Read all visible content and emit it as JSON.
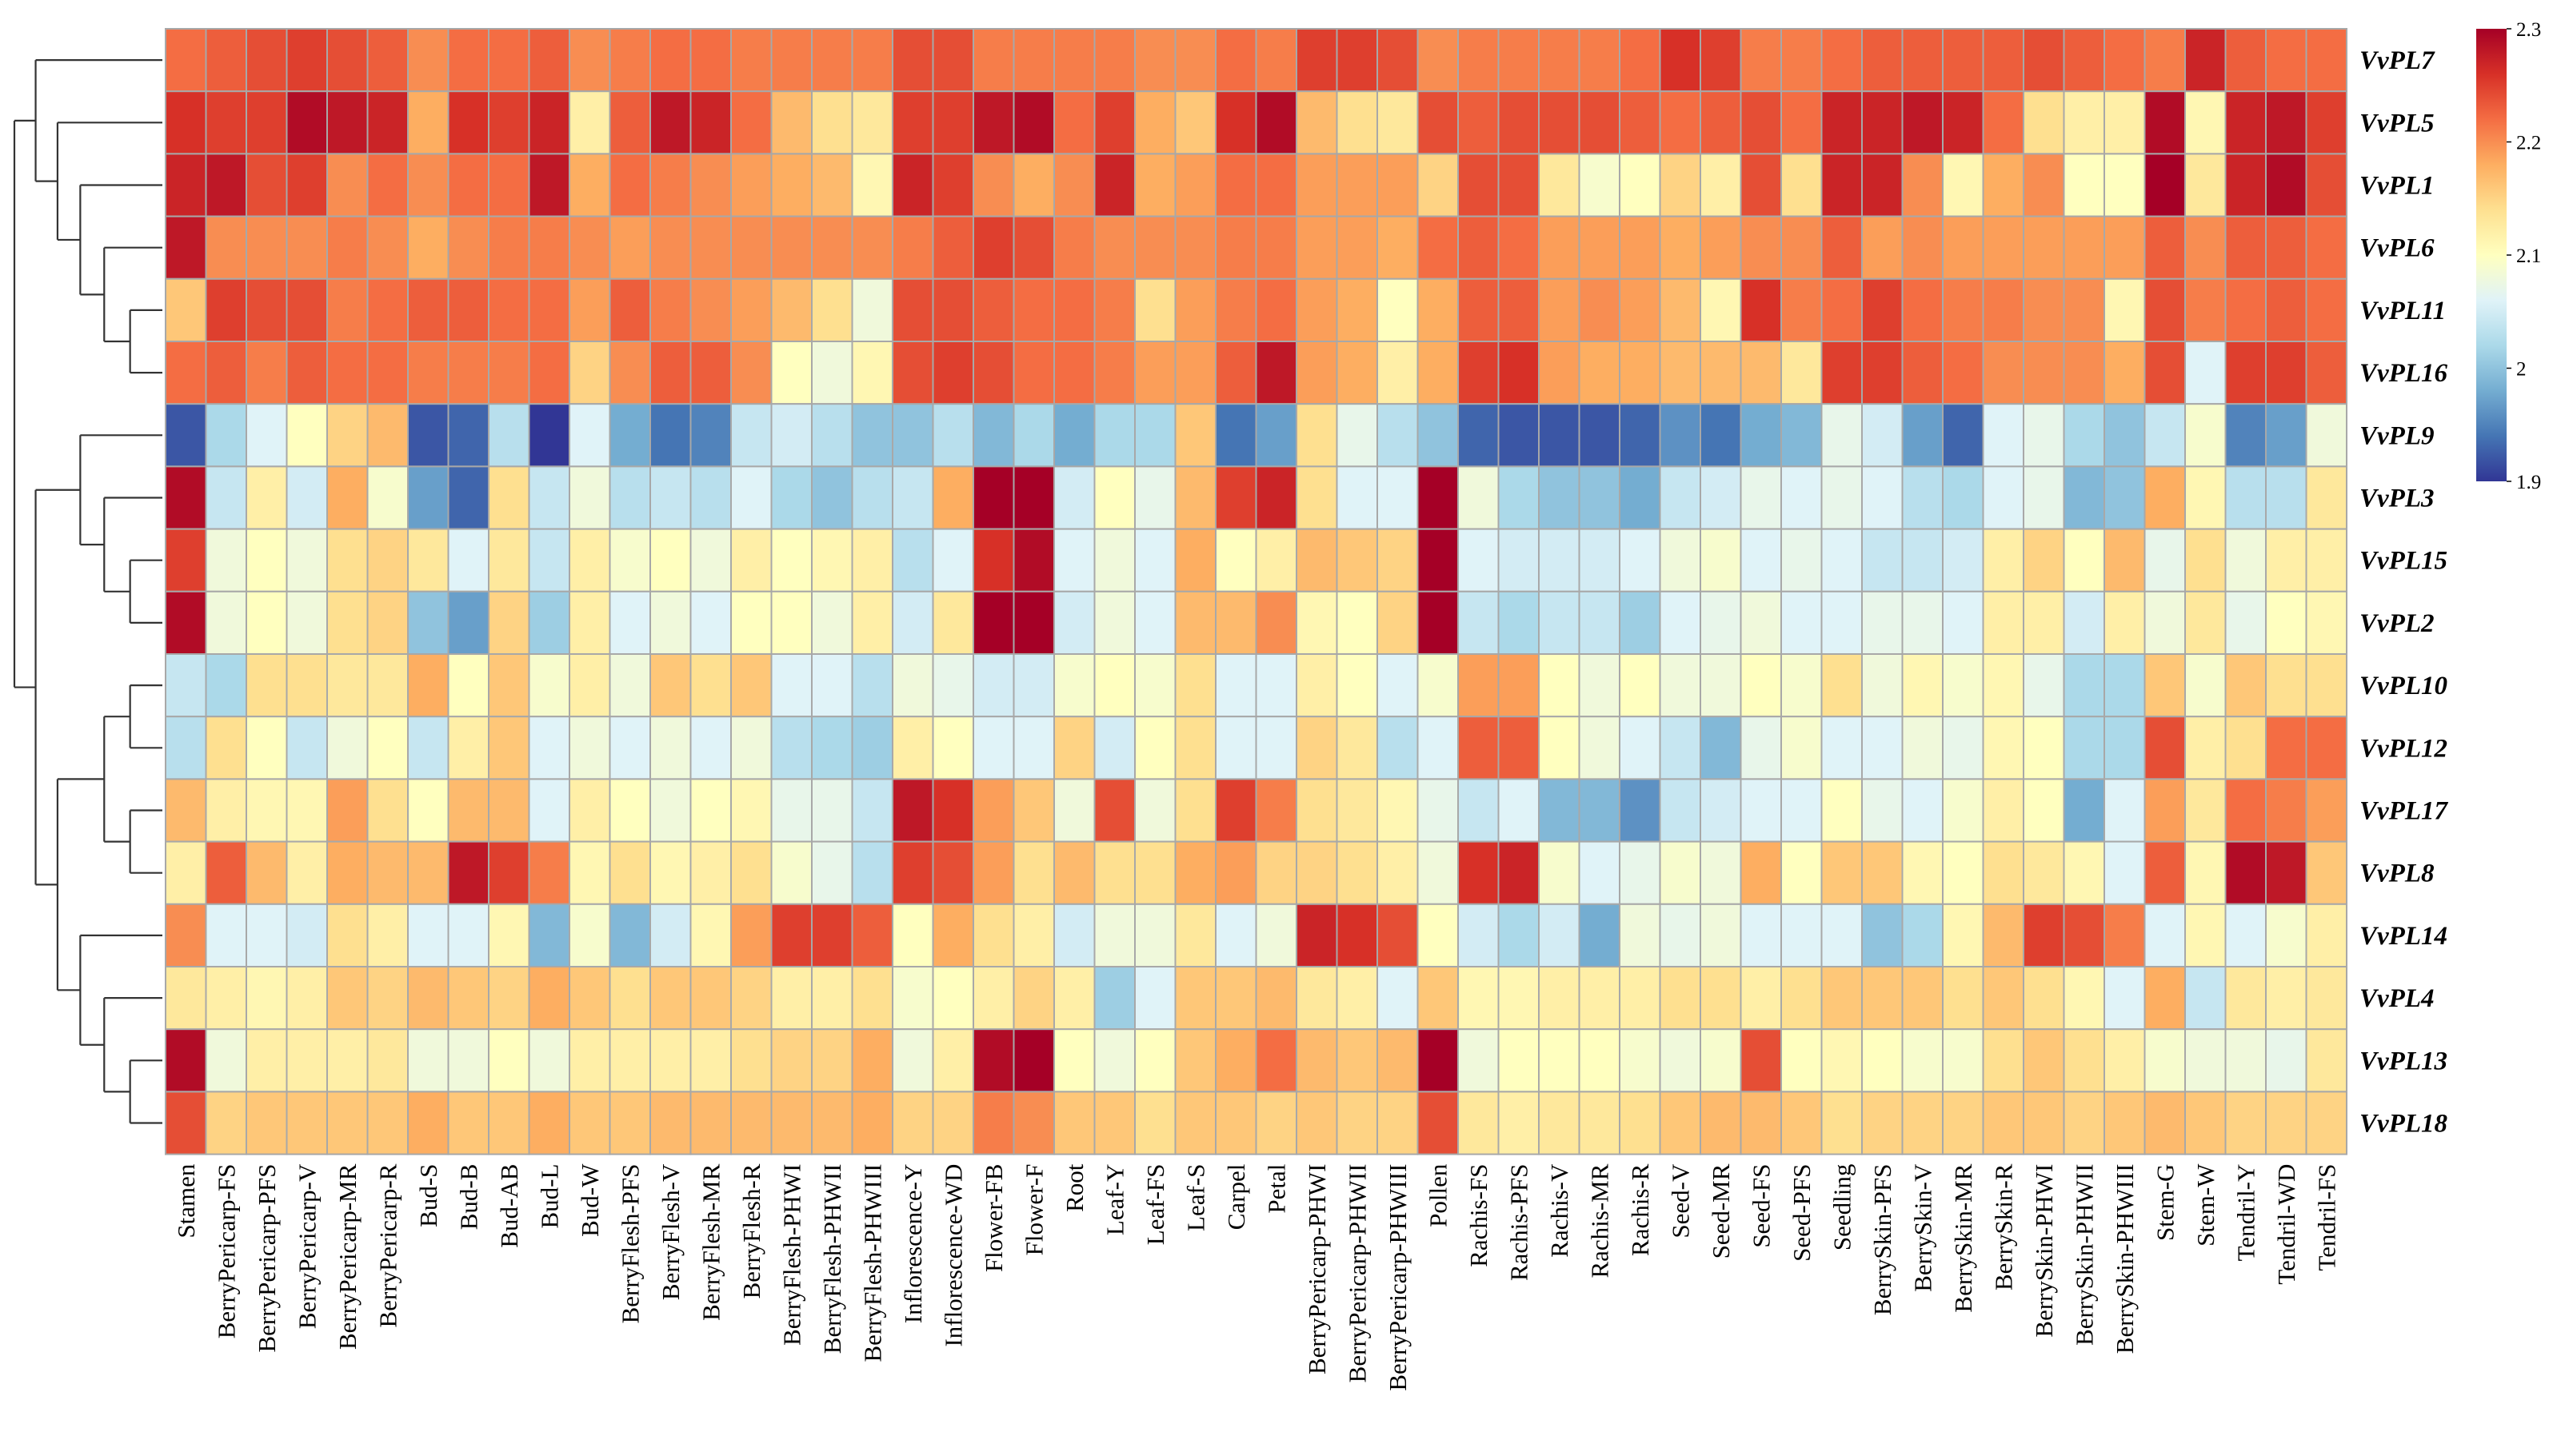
{
  "chart_data": {
    "type": "heatmap",
    "rows": [
      "VvPL7",
      "VvPL5",
      "VvPL1",
      "VvPL6",
      "VvPL11",
      "VvPL16",
      "VvPL9",
      "VvPL3",
      "VvPL15",
      "VvPL2",
      "VvPL10",
      "VvPL12",
      "VvPL17",
      "VvPL8",
      "VvPL14",
      "VvPL4",
      "VvPL13",
      "VvPL18"
    ],
    "columns": [
      "Stamen",
      "BerryPericarp-FS",
      "BerryPericarp-PFS",
      "BerryPericarp-V",
      "BerryPericarp-MR",
      "BerryPericarp-R",
      "Bud-S",
      "Bud-B",
      "Bud-AB",
      "Bud-L",
      "Bud-W",
      "BerryFlesh-PFS",
      "BerryFlesh-V",
      "BerryFlesh-MR",
      "BerryFlesh-R",
      "BerryFlesh-PHWI",
      "BerryFlesh-PHWII",
      "BerryFlesh-PHWIII",
      "Inflorescence-Y",
      "Inflorescence-WD",
      "Flower-FB",
      "Flower-F",
      "Root",
      "Leaf-Y",
      "Leaf-FS",
      "Leaf-S",
      "Carpel",
      "Petal",
      "BerryPericarp-PHWI",
      "BerryPericarp-PHWII",
      "BerryPericarp-PHWIII",
      "Pollen",
      "Rachis-FS",
      "Rachis-PFS",
      "Rachis-V",
      "Rachis-MR",
      "Rachis-R",
      "Seed-V",
      "Seed-MR",
      "Seed-FS",
      "Seed-PFS",
      "Seedling",
      "BerrySkin-PFS",
      "BerrySkin-V",
      "BerrySkin-MR",
      "BerrySkin-R",
      "BerrySkin-PHWI",
      "BerrySkin-PHWII",
      "BerrySkin-PHWIII",
      "Stem-G",
      "Stem-W",
      "Tendril-Y",
      "Tendril-WD",
      "Tendril-FS"
    ],
    "values": [
      [
        2.22,
        2.23,
        2.24,
        2.25,
        2.24,
        2.23,
        2.2,
        2.22,
        2.22,
        2.23,
        2.2,
        2.21,
        2.22,
        2.22,
        2.21,
        2.21,
        2.21,
        2.21,
        2.24,
        2.24,
        2.21,
        2.21,
        2.21,
        2.21,
        2.2,
        2.2,
        2.22,
        2.21,
        2.25,
        2.25,
        2.24,
        2.2,
        2.21,
        2.21,
        2.21,
        2.21,
        2.22,
        2.26,
        2.25,
        2.21,
        2.21,
        2.22,
        2.23,
        2.23,
        2.23,
        2.23,
        2.24,
        2.23,
        2.22,
        2.21,
        2.27,
        2.23,
        2.22,
        2.22
      ],
      [
        2.26,
        2.25,
        2.25,
        2.29,
        2.28,
        2.27,
        2.18,
        2.26,
        2.25,
        2.27,
        2.12,
        2.23,
        2.28,
        2.27,
        2.22,
        2.17,
        2.14,
        2.13,
        2.25,
        2.25,
        2.28,
        2.29,
        2.22,
        2.25,
        2.18,
        2.16,
        2.26,
        2.29,
        2.17,
        2.14,
        2.13,
        2.24,
        2.23,
        2.24,
        2.24,
        2.24,
        2.23,
        2.22,
        2.23,
        2.24,
        2.22,
        2.27,
        2.27,
        2.28,
        2.27,
        2.22,
        2.14,
        2.12,
        2.12,
        2.29,
        2.11,
        2.27,
        2.28,
        2.25
      ],
      [
        2.27,
        2.28,
        2.24,
        2.25,
        2.2,
        2.22,
        2.2,
        2.22,
        2.22,
        2.28,
        2.18,
        2.22,
        2.21,
        2.2,
        2.19,
        2.18,
        2.17,
        2.11,
        2.27,
        2.25,
        2.2,
        2.18,
        2.2,
        2.27,
        2.18,
        2.19,
        2.22,
        2.22,
        2.19,
        2.19,
        2.19,
        2.15,
        2.24,
        2.24,
        2.13,
        2.09,
        2.1,
        2.15,
        2.12,
        2.24,
        2.14,
        2.27,
        2.27,
        2.2,
        2.11,
        2.18,
        2.2,
        2.1,
        2.1,
        2.3,
        2.13,
        2.27,
        2.29,
        2.24
      ],
      [
        2.28,
        2.2,
        2.2,
        2.2,
        2.21,
        2.2,
        2.18,
        2.2,
        2.21,
        2.21,
        2.2,
        2.19,
        2.2,
        2.2,
        2.2,
        2.2,
        2.2,
        2.2,
        2.21,
        2.23,
        2.25,
        2.24,
        2.21,
        2.2,
        2.2,
        2.2,
        2.21,
        2.21,
        2.19,
        2.19,
        2.18,
        2.22,
        2.23,
        2.22,
        2.19,
        2.19,
        2.19,
        2.18,
        2.19,
        2.2,
        2.2,
        2.23,
        2.19,
        2.2,
        2.19,
        2.19,
        2.19,
        2.19,
        2.19,
        2.23,
        2.2,
        2.23,
        2.23,
        2.22
      ],
      [
        2.16,
        2.25,
        2.24,
        2.24,
        2.21,
        2.22,
        2.23,
        2.23,
        2.22,
        2.22,
        2.19,
        2.23,
        2.21,
        2.2,
        2.19,
        2.17,
        2.14,
        2.08,
        2.24,
        2.24,
        2.23,
        2.22,
        2.22,
        2.21,
        2.14,
        2.19,
        2.21,
        2.22,
        2.19,
        2.18,
        2.1,
        2.18,
        2.23,
        2.23,
        2.19,
        2.2,
        2.19,
        2.17,
        2.11,
        2.26,
        2.21,
        2.22,
        2.25,
        2.22,
        2.21,
        2.21,
        2.2,
        2.2,
        2.11,
        2.24,
        2.21,
        2.22,
        2.23,
        2.22
      ],
      [
        2.22,
        2.23,
        2.21,
        2.23,
        2.22,
        2.22,
        2.21,
        2.21,
        2.21,
        2.22,
        2.15,
        2.2,
        2.23,
        2.23,
        2.2,
        2.1,
        2.08,
        2.11,
        2.24,
        2.25,
        2.24,
        2.22,
        2.22,
        2.21,
        2.19,
        2.19,
        2.23,
        2.28,
        2.19,
        2.18,
        2.12,
        2.18,
        2.25,
        2.26,
        2.19,
        2.18,
        2.18,
        2.17,
        2.17,
        2.17,
        2.13,
        2.25,
        2.25,
        2.23,
        2.22,
        2.2,
        2.2,
        2.2,
        2.18,
        2.24,
        2.06,
        2.25,
        2.25,
        2.23
      ],
      [
        1.92,
        2.02,
        2.06,
        2.1,
        2.15,
        2.17,
        1.92,
        1.93,
        2.03,
        1.9,
        2.06,
        1.98,
        1.94,
        1.95,
        2.04,
        2.05,
        2.03,
        2.0,
        2.0,
        2.03,
        1.99,
        2.02,
        1.98,
        2.02,
        2.02,
        2.16,
        1.94,
        1.97,
        2.14,
        2.07,
        2.03,
        2.0,
        1.93,
        1.92,
        1.92,
        1.92,
        1.93,
        1.96,
        1.94,
        1.98,
        1.99,
        2.07,
        2.05,
        1.97,
        1.93,
        2.06,
        2.07,
        2.02,
        2.0,
        2.04,
        2.09,
        1.95,
        1.97,
        2.08
      ],
      [
        2.29,
        2.04,
        2.12,
        2.05,
        2.18,
        2.09,
        1.97,
        1.93,
        2.14,
        2.04,
        2.08,
        2.03,
        2.04,
        2.03,
        2.06,
        2.02,
        2.0,
        2.03,
        2.04,
        2.18,
        2.3,
        2.3,
        2.05,
        2.1,
        2.07,
        2.17,
        2.25,
        2.27,
        2.14,
        2.06,
        2.06,
        2.3,
        2.08,
        2.02,
        2.0,
        2.0,
        1.98,
        2.04,
        2.05,
        2.07,
        2.06,
        2.07,
        2.06,
        2.03,
        2.02,
        2.06,
        2.07,
        1.99,
        2.0,
        2.18,
        2.11,
        2.03,
        2.03,
        2.13
      ],
      [
        2.25,
        2.08,
        2.1,
        2.08,
        2.14,
        2.15,
        2.13,
        2.06,
        2.13,
        2.04,
        2.12,
        2.09,
        2.1,
        2.08,
        2.12,
        2.1,
        2.11,
        2.12,
        2.03,
        2.06,
        2.26,
        2.29,
        2.06,
        2.08,
        2.06,
        2.18,
        2.1,
        2.12,
        2.17,
        2.16,
        2.15,
        2.3,
        2.06,
        2.05,
        2.05,
        2.05,
        2.06,
        2.08,
        2.09,
        2.06,
        2.07,
        2.06,
        2.04,
        2.04,
        2.05,
        2.12,
        2.15,
        2.1,
        2.17,
        2.07,
        2.14,
        2.08,
        2.12,
        2.12
      ],
      [
        2.29,
        2.08,
        2.1,
        2.08,
        2.14,
        2.15,
        2.0,
        1.97,
        2.15,
        2.01,
        2.12,
        2.06,
        2.08,
        2.06,
        2.1,
        2.1,
        2.08,
        2.12,
        2.05,
        2.13,
        2.3,
        2.3,
        2.05,
        2.08,
        2.06,
        2.17,
        2.17,
        2.2,
        2.11,
        2.1,
        2.15,
        2.3,
        2.04,
        2.02,
        2.04,
        2.04,
        2.01,
        2.06,
        2.07,
        2.08,
        2.06,
        2.06,
        2.07,
        2.07,
        2.06,
        2.12,
        2.12,
        2.05,
        2.12,
        2.08,
        2.13,
        2.07,
        2.1,
        2.11
      ],
      [
        2.04,
        2.02,
        2.14,
        2.14,
        2.13,
        2.13,
        2.18,
        2.1,
        2.16,
        2.09,
        2.12,
        2.08,
        2.16,
        2.14,
        2.16,
        2.06,
        2.06,
        2.03,
        2.08,
        2.07,
        2.05,
        2.05,
        2.09,
        2.1,
        2.09,
        2.14,
        2.06,
        2.06,
        2.12,
        2.1,
        2.06,
        2.09,
        2.19,
        2.19,
        2.1,
        2.08,
        2.1,
        2.08,
        2.08,
        2.1,
        2.09,
        2.14,
        2.08,
        2.11,
        2.09,
        2.11,
        2.07,
        2.02,
        2.02,
        2.16,
        2.09,
        2.16,
        2.14,
        2.14
      ],
      [
        2.03,
        2.14,
        2.1,
        2.04,
        2.08,
        2.1,
        2.04,
        2.12,
        2.16,
        2.06,
        2.08,
        2.06,
        2.08,
        2.06,
        2.08,
        2.03,
        2.02,
        2.01,
        2.12,
        2.1,
        2.06,
        2.06,
        2.15,
        2.05,
        2.1,
        2.14,
        2.06,
        2.06,
        2.15,
        2.13,
        2.03,
        2.06,
        2.23,
        2.23,
        2.1,
        2.08,
        2.06,
        2.04,
        1.99,
        2.07,
        2.09,
        2.06,
        2.06,
        2.08,
        2.07,
        2.11,
        2.1,
        2.02,
        2.02,
        2.24,
        2.12,
        2.14,
        2.22,
        2.22
      ],
      [
        2.17,
        2.12,
        2.11,
        2.11,
        2.19,
        2.14,
        2.1,
        2.17,
        2.17,
        2.06,
        2.12,
        2.1,
        2.08,
        2.1,
        2.11,
        2.07,
        2.07,
        2.04,
        2.28,
        2.26,
        2.19,
        2.16,
        2.08,
        2.24,
        2.08,
        2.14,
        2.25,
        2.21,
        2.14,
        2.13,
        2.11,
        2.07,
        2.04,
        2.06,
        1.99,
        1.99,
        1.96,
        2.04,
        2.05,
        2.06,
        2.06,
        2.1,
        2.07,
        2.06,
        2.09,
        2.12,
        2.1,
        1.98,
        2.06,
        2.19,
        2.13,
        2.22,
        2.21,
        2.19
      ],
      [
        2.12,
        2.23,
        2.17,
        2.12,
        2.18,
        2.17,
        2.17,
        2.28,
        2.25,
        2.21,
        2.11,
        2.14,
        2.11,
        2.12,
        2.14,
        2.09,
        2.07,
        2.03,
        2.25,
        2.24,
        2.19,
        2.14,
        2.17,
        2.14,
        2.14,
        2.18,
        2.19,
        2.15,
        2.15,
        2.14,
        2.12,
        2.08,
        2.26,
        2.27,
        2.09,
        2.06,
        2.07,
        2.09,
        2.08,
        2.18,
        2.1,
        2.16,
        2.16,
        2.11,
        2.1,
        2.14,
        2.13,
        2.11,
        2.06,
        2.23,
        2.11,
        2.29,
        2.28,
        2.16
      ],
      [
        2.2,
        2.06,
        2.06,
        2.05,
        2.14,
        2.12,
        2.06,
        2.06,
        2.11,
        1.99,
        2.09,
        1.99,
        2.05,
        2.11,
        2.19,
        2.25,
        2.25,
        2.23,
        2.1,
        2.18,
        2.14,
        2.12,
        2.05,
        2.08,
        2.08,
        2.13,
        2.06,
        2.08,
        2.27,
        2.26,
        2.24,
        2.1,
        2.05,
        2.02,
        2.05,
        1.98,
        2.08,
        2.07,
        2.08,
        2.06,
        2.06,
        2.06,
        2.0,
        2.02,
        2.11,
        2.17,
        2.25,
        2.24,
        2.21,
        2.06,
        2.11,
        2.06,
        2.09,
        2.12
      ],
      [
        2.13,
        2.12,
        2.11,
        2.12,
        2.16,
        2.15,
        2.17,
        2.16,
        2.15,
        2.18,
        2.16,
        2.14,
        2.16,
        2.16,
        2.15,
        2.12,
        2.12,
        2.14,
        2.09,
        2.1,
        2.12,
        2.15,
        2.12,
        2.01,
        2.06,
        2.16,
        2.16,
        2.17,
        2.13,
        2.12,
        2.06,
        2.16,
        2.11,
        2.11,
        2.12,
        2.12,
        2.12,
        2.14,
        2.14,
        2.12,
        2.14,
        2.16,
        2.16,
        2.16,
        2.14,
        2.16,
        2.14,
        2.11,
        2.06,
        2.18,
        2.04,
        2.13,
        2.12,
        2.13
      ],
      [
        2.29,
        2.08,
        2.12,
        2.12,
        2.12,
        2.13,
        2.08,
        2.08,
        2.1,
        2.08,
        2.12,
        2.12,
        2.12,
        2.12,
        2.14,
        2.15,
        2.15,
        2.18,
        2.08,
        2.12,
        2.29,
        2.3,
        2.1,
        2.08,
        2.1,
        2.16,
        2.18,
        2.22,
        2.17,
        2.16,
        2.17,
        2.3,
        2.08,
        2.1,
        2.1,
        2.1,
        2.09,
        2.08,
        2.09,
        2.24,
        2.1,
        2.11,
        2.1,
        2.09,
        2.09,
        2.14,
        2.16,
        2.14,
        2.12,
        2.09,
        2.08,
        2.08,
        2.07,
        2.13
      ],
      [
        2.24,
        2.15,
        2.16,
        2.16,
        2.16,
        2.16,
        2.18,
        2.16,
        2.16,
        2.18,
        2.16,
        2.16,
        2.17,
        2.17,
        2.17,
        2.17,
        2.17,
        2.18,
        2.15,
        2.15,
        2.21,
        2.2,
        2.16,
        2.16,
        2.14,
        2.16,
        2.16,
        2.15,
        2.16,
        2.15,
        2.15,
        2.24,
        2.13,
        2.12,
        2.13,
        2.13,
        2.14,
        2.16,
        2.17,
        2.17,
        2.16,
        2.14,
        2.15,
        2.15,
        2.15,
        2.16,
        2.16,
        2.15,
        2.16,
        2.17,
        2.16,
        2.15,
        2.15,
        2.15
      ]
    ],
    "color_scale": {
      "min": 1.9,
      "max": 2.3,
      "ticks": [
        "2.3",
        "2.2",
        "2.1",
        "2",
        "1.9"
      ],
      "colors": [
        "#313695",
        "#4575b4",
        "#74add1",
        "#abd9e9",
        "#e0f3f8",
        "#ffffbf",
        "#fee090",
        "#fdae61",
        "#f46d43",
        "#d73027",
        "#a50026"
      ]
    },
    "row_dendrogram_order": [
      "VvPL7",
      "VvPL5",
      "VvPL1",
      "VvPL6",
      "VvPL11",
      "VvPL16",
      "VvPL9",
      "VvPL3",
      "VvPL15",
      "VvPL2",
      "VvPL10",
      "VvPL12",
      "VvPL17",
      "VvPL8",
      "VvPL14",
      "VvPL4",
      "VvPL13",
      "VvPL18"
    ],
    "title": "",
    "xlabel": "",
    "ylabel": "",
    "legend": "top-right"
  }
}
